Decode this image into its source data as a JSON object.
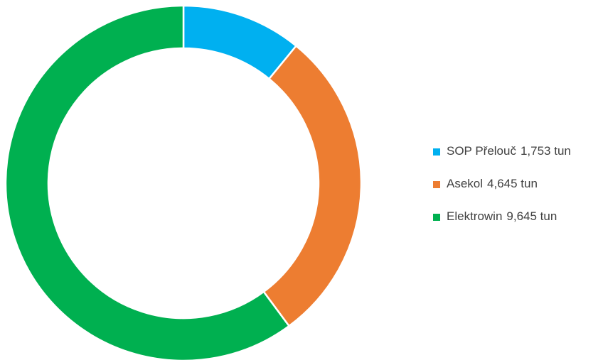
{
  "chart_data": {
    "type": "donut",
    "categories": [
      "SOP Přelouč",
      "Asekol",
      "Elektrowin"
    ],
    "values": [
      1753,
      4645,
      9645
    ],
    "value_labels": [
      "1,753 tun",
      "4,645 tun",
      "9,645 tun"
    ],
    "colors": [
      "#00b0f0",
      "#ed7d31",
      "#00b050"
    ],
    "legend": "right"
  }
}
